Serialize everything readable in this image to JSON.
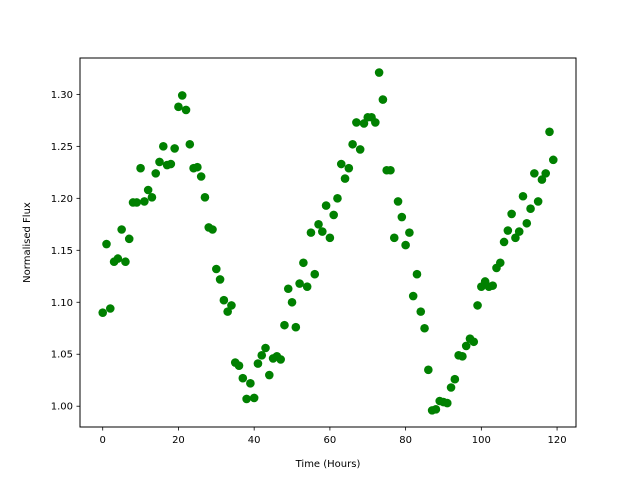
{
  "chart_data": {
    "type": "scatter",
    "title": "",
    "xlabel": "Time (Hours)",
    "ylabel": "Normalised Flux",
    "xlim": [
      -6,
      125
    ],
    "ylim": [
      0.98,
      1.335
    ],
    "xticks": [
      0,
      20,
      40,
      60,
      80,
      100,
      120
    ],
    "xtick_labels": [
      "0",
      "20",
      "40",
      "60",
      "80",
      "100",
      "120"
    ],
    "yticks": [
      1.0,
      1.05,
      1.1,
      1.15,
      1.2,
      1.25,
      1.3
    ],
    "ytick_labels": [
      "1.00",
      "1.05",
      "1.10",
      "1.15",
      "1.20",
      "1.25",
      "1.30"
    ],
    "grid": false,
    "marker_color": "#008000",
    "series": [
      {
        "x": [
          0,
          1,
          2,
          3,
          4,
          5,
          6,
          7,
          8,
          9,
          10,
          11,
          12,
          13,
          14,
          15,
          16,
          17,
          18,
          19,
          20,
          21,
          22,
          23,
          24,
          25,
          26,
          27,
          28,
          29,
          30,
          31,
          32,
          33,
          34,
          35,
          36,
          37,
          38,
          39,
          40,
          41,
          42,
          43,
          44,
          45,
          46,
          47,
          48,
          49,
          50,
          51,
          52,
          53,
          54,
          55,
          56,
          57,
          58,
          59,
          60,
          61,
          62,
          63,
          64,
          65,
          66,
          67,
          68,
          69,
          70,
          71,
          72,
          73,
          74,
          75,
          76,
          77,
          78,
          79,
          80,
          81,
          82,
          83,
          84,
          85,
          86,
          87,
          88,
          89,
          90,
          91,
          92,
          93,
          94,
          95,
          96,
          97,
          98,
          99,
          100,
          101,
          102,
          103,
          104,
          105,
          106,
          107,
          108,
          109,
          110,
          111,
          112,
          113,
          114,
          115,
          116,
          117,
          118,
          119
        ],
        "y": [
          1.09,
          1.156,
          1.094,
          1.139,
          1.142,
          1.17,
          1.139,
          1.161,
          1.196,
          1.196,
          1.229,
          1.197,
          1.208,
          1.201,
          1.224,
          1.235,
          1.25,
          1.232,
          1.233,
          1.248,
          1.288,
          1.299,
          1.285,
          1.252,
          1.229,
          1.23,
          1.221,
          1.201,
          1.172,
          1.17,
          1.132,
          1.122,
          1.102,
          1.091,
          1.097,
          1.042,
          1.039,
          1.027,
          1.007,
          1.022,
          1.008,
          1.041,
          1.049,
          1.056,
          1.03,
          1.046,
          1.048,
          1.045,
          1.078,
          1.113,
          1.1,
          1.076,
          1.118,
          1.138,
          1.115,
          1.167,
          1.127,
          1.175,
          1.168,
          1.193,
          1.162,
          1.184,
          1.2,
          1.233,
          1.219,
          1.229,
          1.252,
          1.273,
          1.247,
          1.272,
          1.278,
          1.278,
          1.273,
          1.321,
          1.295,
          1.227,
          1.227,
          1.162,
          1.197,
          1.182,
          1.155,
          1.167,
          1.106,
          1.127,
          1.091,
          1.075,
          1.035,
          0.996,
          0.997,
          1.005,
          1.004,
          1.003,
          1.018,
          1.026,
          1.049,
          1.048,
          1.058,
          1.065,
          1.062,
          1.097,
          1.115,
          1.12,
          1.115,
          1.116,
          1.133,
          1.138,
          1.158,
          1.169,
          1.185,
          1.162,
          1.168,
          1.202,
          1.176,
          1.19,
          1.224,
          1.197,
          1.218,
          1.224,
          1.264,
          1.237
        ]
      }
    ]
  }
}
